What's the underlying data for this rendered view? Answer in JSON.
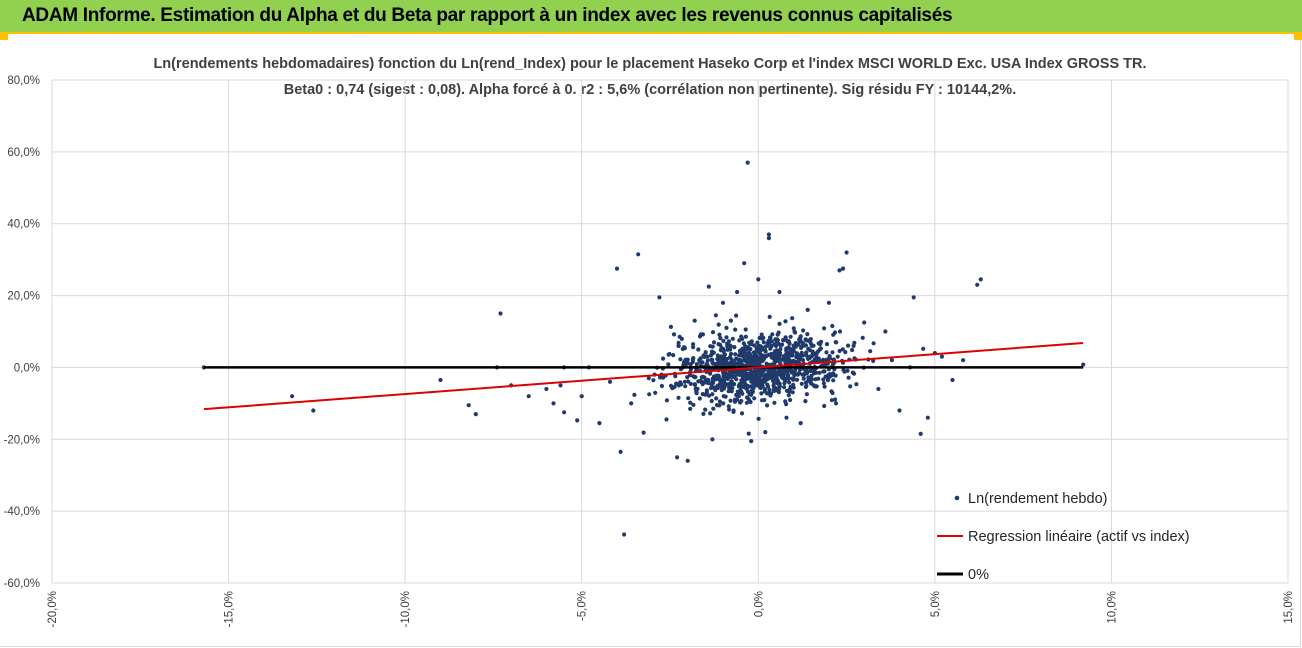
{
  "header": {
    "title": "ADAM Informe. Estimation du Alpha et du Beta par rapport à un index avec les revenus connus capitalisés"
  },
  "colors": {
    "banner": "#92d050",
    "banner_edge": "#ffc000",
    "points": "#1f3a6b",
    "regression": "#e00000",
    "zero_line": "#000000",
    "grid": "#d9d9d9"
  },
  "chart_data": {
    "type": "scatter",
    "title_line1": "Ln(rendements hebdomadaires) fonction du Ln(rend_Index) pour le placement Haseko Corp et l'index MSCI WORLD Exc. USA Index GROSS TR.",
    "title_line2": "Beta0 : 0,74 (sigest : 0,08). Alpha forcé à 0. r2 : 5,6% (corrélation non pertinente). Sig résidu FY : 10144,2%.",
    "xlim": [
      -0.2,
      0.15
    ],
    "ylim": [
      -0.6,
      0.8
    ],
    "x_ticks": [
      "-20,0%",
      "-15,0%",
      "-10,0%",
      "-5,0%",
      "0,0%",
      "5,0%",
      "10,0%",
      "15,0%"
    ],
    "y_ticks": [
      "80,0%",
      "60,0%",
      "40,0%",
      "20,0%",
      "0,0%",
      "-20,0%",
      "-40,0%",
      "-60,0%"
    ],
    "x_tick_values": [
      -0.2,
      -0.15,
      -0.1,
      -0.05,
      0.0,
      0.05,
      0.1,
      0.15
    ],
    "y_tick_values": [
      0.8,
      0.6,
      0.4,
      0.2,
      0.0,
      -0.2,
      -0.4,
      -0.6
    ],
    "legend": {
      "points": "Ln(rendement hebdo)",
      "regression": "Regression linéaire (actif vs index)",
      "zero": "0%",
      "position": "bottom-right"
    },
    "regression": {
      "beta": 0.74,
      "alpha": 0,
      "x_range": [
        -0.157,
        0.092
      ]
    },
    "zero_line": {
      "y": 0,
      "x_range": [
        -0.157,
        0.092
      ]
    },
    "points": [
      [
        -0.157,
        0.0
      ],
      [
        -0.132,
        -0.08
      ],
      [
        -0.126,
        -0.12
      ],
      [
        -0.09,
        -0.035
      ],
      [
        -0.082,
        -0.105
      ],
      [
        -0.08,
        -0.13
      ],
      [
        -0.074,
        0.0
      ],
      [
        -0.073,
        0.15
      ],
      [
        -0.07,
        -0.05
      ],
      [
        -0.065,
        -0.08
      ],
      [
        -0.06,
        -0.06
      ],
      [
        -0.058,
        -0.1
      ],
      [
        -0.056,
        -0.05
      ],
      [
        -0.055,
        -0.125
      ],
      [
        -0.055,
        0.0
      ],
      [
        -0.05,
        -0.08
      ],
      [
        -0.048,
        0.0
      ],
      [
        -0.045,
        -0.155
      ],
      [
        -0.042,
        -0.04
      ],
      [
        -0.04,
        0.275
      ],
      [
        -0.039,
        -0.235
      ],
      [
        -0.038,
        -0.465
      ],
      [
        -0.036,
        -0.1
      ],
      [
        -0.034,
        0.315
      ],
      [
        -0.031,
        -0.03
      ],
      [
        -0.028,
        0.195
      ],
      [
        -0.026,
        -0.145
      ],
      [
        -0.023,
        -0.25
      ],
      [
        -0.02,
        -0.26
      ],
      [
        -0.018,
        0.13
      ],
      [
        -0.014,
        0.225
      ],
      [
        -0.013,
        -0.2
      ],
      [
        -0.012,
        0.145
      ],
      [
        -0.01,
        0.18
      ],
      [
        -0.009,
        0.11
      ],
      [
        -0.007,
        -0.12
      ],
      [
        -0.006,
        0.21
      ],
      [
        -0.004,
        0.29
      ],
      [
        -0.003,
        0.57
      ],
      [
        -0.002,
        -0.205
      ],
      [
        0.0,
        0.245
      ],
      [
        0.002,
        -0.18
      ],
      [
        0.003,
        0.37
      ],
      [
        0.003,
        0.36
      ],
      [
        0.006,
        0.21
      ],
      [
        0.008,
        -0.14
      ],
      [
        0.012,
        -0.155
      ],
      [
        0.014,
        0.16
      ],
      [
        0.02,
        0.18
      ],
      [
        0.022,
        -0.1
      ],
      [
        0.023,
        0.27
      ],
      [
        0.024,
        0.275
      ],
      [
        0.025,
        0.32
      ],
      [
        0.027,
        0.06
      ],
      [
        0.03,
        0.125
      ],
      [
        0.034,
        -0.06
      ],
      [
        0.036,
        0.1
      ],
      [
        0.04,
        -0.12
      ],
      [
        0.043,
        0.0
      ],
      [
        0.044,
        0.195
      ],
      [
        0.046,
        -0.185
      ],
      [
        0.048,
        -0.14
      ],
      [
        0.05,
        0.04
      ],
      [
        0.052,
        0.03
      ],
      [
        0.055,
        -0.035
      ],
      [
        0.058,
        0.02
      ],
      [
        0.062,
        0.23
      ],
      [
        0.063,
        0.245
      ],
      [
        0.092,
        0.008
      ]
    ],
    "cluster": {
      "count": 1100,
      "x_sd": 0.012,
      "y_sd": 0.045,
      "seed": 7
    }
  }
}
